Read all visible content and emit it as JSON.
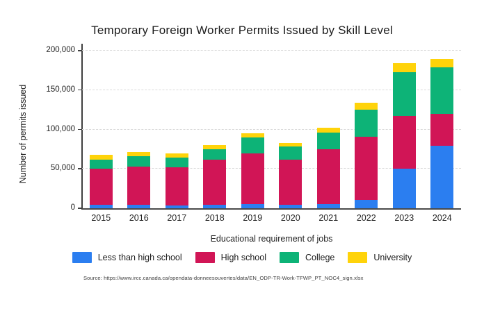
{
  "chart_data": {
    "type": "bar",
    "stacked": true,
    "title": "Temporary Foreign Worker Permits Issued by Skill Level",
    "xlabel": "Educational requirement of jobs",
    "ylabel": "Number of permits issued",
    "categories": [
      "2015",
      "2016",
      "2017",
      "2018",
      "2019",
      "2020",
      "2021",
      "2022",
      "2023",
      "2024"
    ],
    "series": [
      {
        "name": "Less than high school",
        "color": "#2b7ef0",
        "values": [
          4500,
          4000,
          3500,
          4000,
          5000,
          4500,
          5500,
          11000,
          50000,
          79500
        ]
      },
      {
        "name": "High school",
        "color": "#d11556",
        "values": [
          45800,
          49000,
          48300,
          58000,
          65000,
          57000,
          69000,
          80000,
          67500,
          40500
        ]
      },
      {
        "name": "College",
        "color": "#0db377",
        "values": [
          11200,
          12700,
          12500,
          13000,
          19500,
          16500,
          21500,
          34000,
          55500,
          59000
        ]
      },
      {
        "name": "University",
        "color": "#ffd30a",
        "values": [
          6700,
          6000,
          5000,
          4800,
          6000,
          4800,
          6000,
          8500,
          11000,
          10000
        ]
      }
    ],
    "ylim": [
      0,
      200000
    ],
    "yticks": [
      0,
      50000,
      100000,
      150000,
      200000
    ],
    "ytick_labels": [
      "0",
      "50,000",
      "100,000",
      "150,000",
      "200,000"
    ],
    "grid": "horizontal-dashed",
    "legend_position": "bottom"
  },
  "source_note": "Source: https://www.ircc.canada.ca/opendata-donneesouvertes/data/EN_ODP-TR-Work-TFWP_PT_NOC4_sign.xlsx"
}
